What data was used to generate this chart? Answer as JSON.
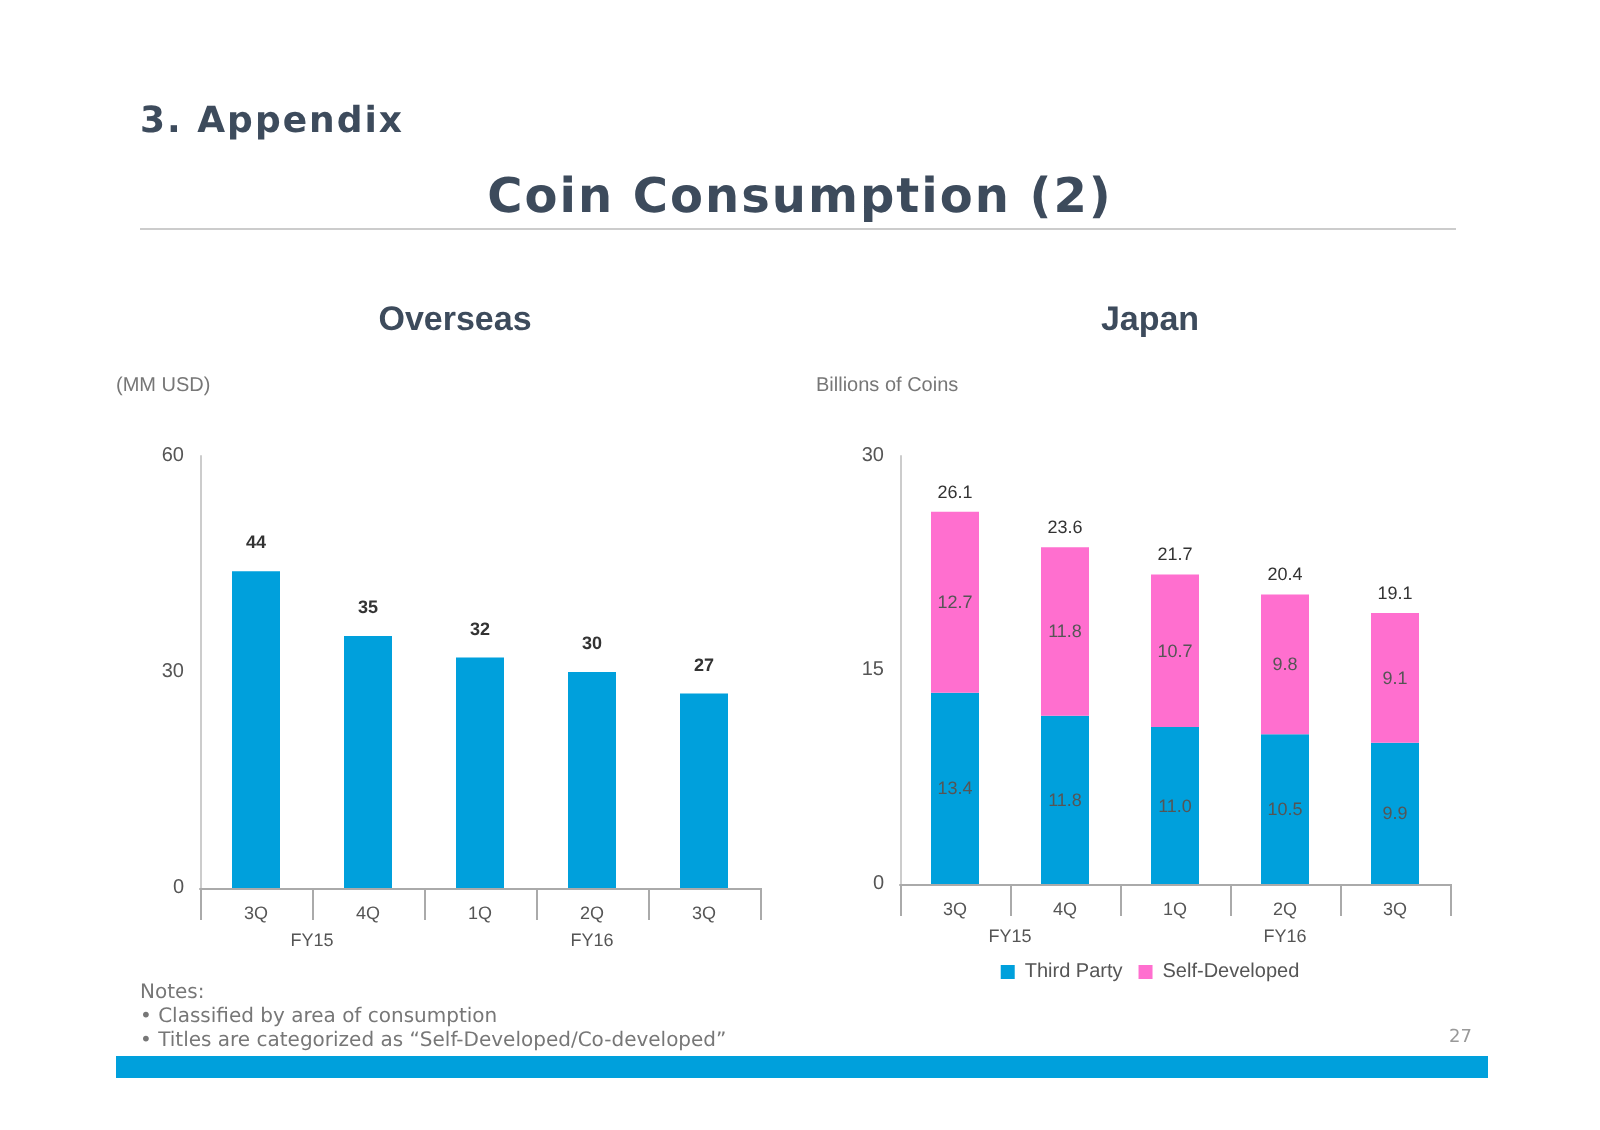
{
  "chart_data": [
    {
      "type": "other",
      "title": "Coin Consumption (2)",
      "subtitle": "3. Appendix",
      "annotations": [
        "Notes:",
        "• Classified by area of consumption",
        "• Titles are categorized as “Self-Developed/Co-developed”",
        "27"
      ]
    },
    {
      "type": "bar",
      "title": "Overseas",
      "ylabel": "(MM USD)",
      "categories": [
        "3Q",
        "4Q",
        "1Q",
        "2Q",
        "3Q"
      ],
      "values": [
        44,
        35,
        32,
        30,
        27
      ],
      "color": "#00a0dc",
      "ylim": [
        0,
        60
      ],
      "yticks": [
        0,
        30,
        60
      ],
      "grid": false,
      "data_labels": true,
      "annotations": [
        "FY15",
        "FY16"
      ]
    },
    {
      "type": "bar",
      "title": "Japan",
      "ylabel": "Billions of Coins",
      "categories": [
        "3Q",
        "4Q",
        "1Q",
        "2Q",
        "3Q"
      ],
      "stacked": true,
      "series": [
        {
          "name": "Third Party",
          "color": "#00a0dc",
          "values": [
            13.4,
            11.8,
            11.0,
            10.5,
            9.9
          ],
          "value_labels": [
            "13.4",
            "11.8",
            "11.0",
            "10.5",
            "9.9"
          ]
        },
        {
          "name": "Self-Developed",
          "color": "#ff6fcf",
          "values": [
            12.7,
            11.8,
            10.7,
            9.8,
            9.1
          ],
          "value_labels": [
            "12.7",
            "11.8",
            "10.7",
            "9.8",
            "9.1"
          ]
        }
      ],
      "totals": [
        "26.1",
        "23.6",
        "21.7",
        "20.4",
        "19.1"
      ],
      "ylim": [
        0,
        30
      ],
      "yticks": [
        0,
        15,
        30
      ],
      "grid": false,
      "legend": "bottom",
      "annotations": [
        "FY15",
        "FY16"
      ]
    }
  ]
}
